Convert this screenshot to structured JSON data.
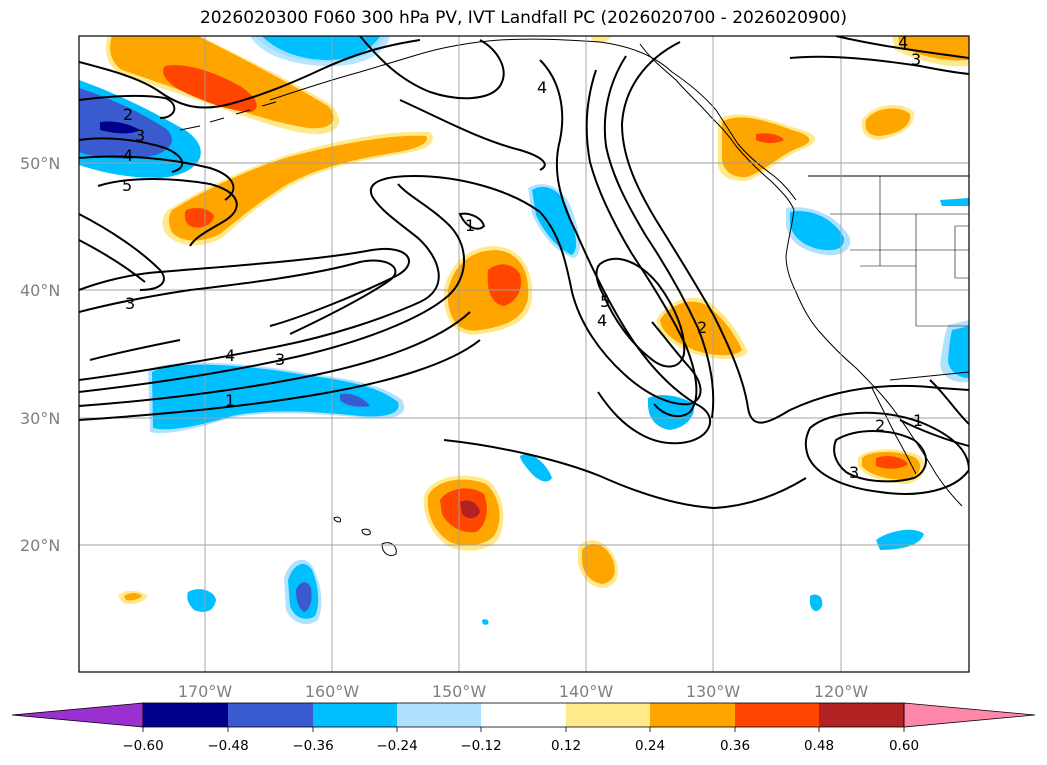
{
  "title": "2026020300 F060 300 hPa PV, IVT Landfall PC (2026020700 - 2026020900)",
  "lat_labels": [
    "50°N",
    "40°N",
    "30°N",
    "20°N"
  ],
  "lon_labels": [
    "170°W",
    "160°W",
    "150°W",
    "140°W",
    "130°W",
    "120°W"
  ],
  "colorbar": {
    "ticks": [
      "−0.60",
      "−0.48",
      "−0.36",
      "−0.24",
      "−0.12",
      "0.12",
      "0.24",
      "0.36",
      "0.48",
      "0.60"
    ],
    "colors": [
      "#9b30d0",
      "#00008b",
      "#3a5bd0",
      "#00bfff",
      "#b0e2ff",
      "#ffffff",
      "#ffe98a",
      "#ffa500",
      "#ff4500",
      "#b22222",
      "#ff88aa"
    ]
  },
  "contour_labels": {
    "a": "2",
    "b": "3",
    "c": "4",
    "d": "5",
    "e": "3",
    "f": "4",
    "g": "3",
    "h": "1",
    "i": "1",
    "j": "4",
    "k": "5",
    "l": "4",
    "m": "2",
    "n": "2",
    "o": "1",
    "p": "3",
    "q": "4",
    "r": "3"
  },
  "shading_colors": {
    "blue_light": "#b0e2ff",
    "blue": "#00bfff",
    "blue_mid": "#3a5bd0",
    "blue_dark": "#00008b",
    "yellow": "#ffe98a",
    "orange": "#ffa500",
    "orange_red": "#ff4500",
    "red_dark": "#b22222"
  }
}
